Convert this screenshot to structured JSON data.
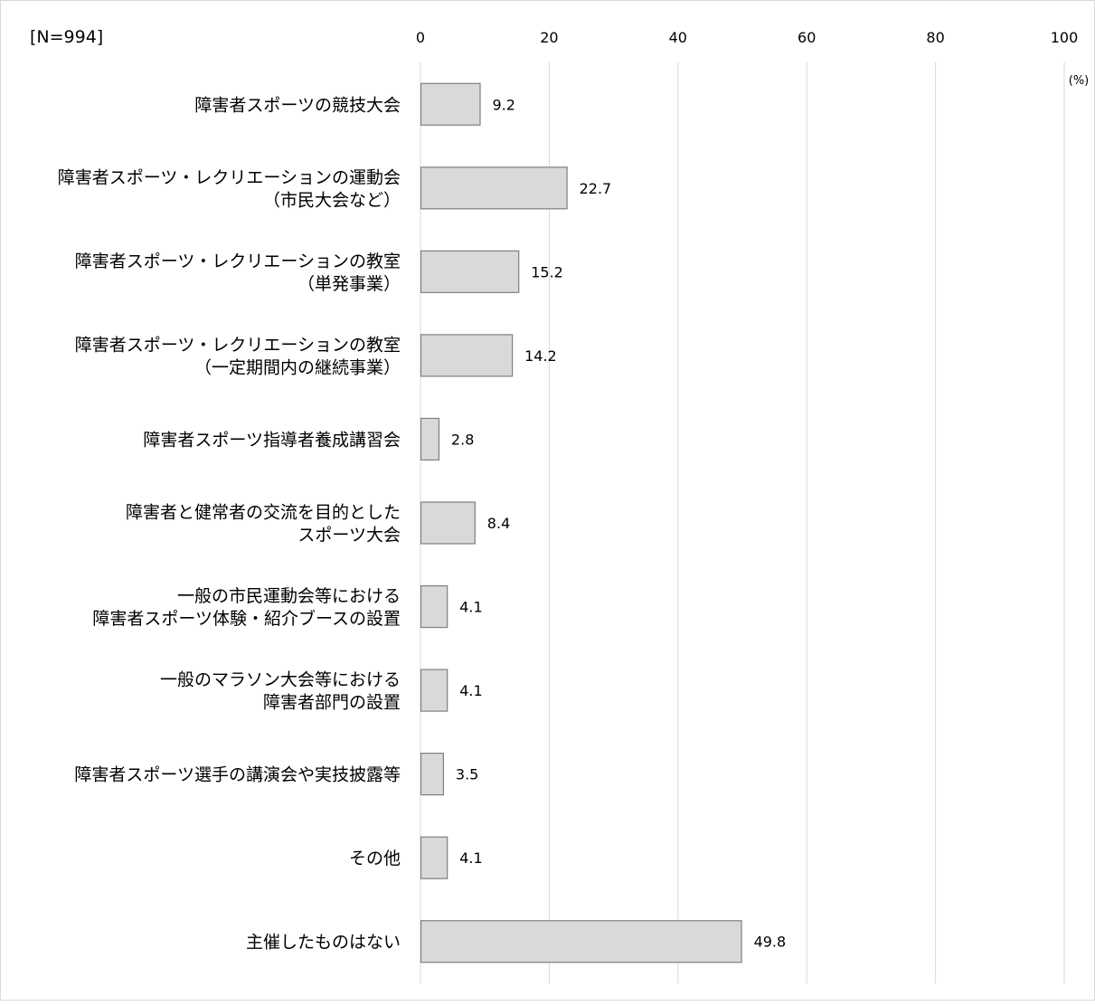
{
  "chart_data": {
    "type": "bar",
    "orientation": "horizontal",
    "sample_label": "[N=994]",
    "unit_label": "(%)",
    "xlim": [
      0,
      100
    ],
    "x_ticks": [
      "0",
      "20",
      "40",
      "60",
      "80",
      "100"
    ],
    "grid": true,
    "bar_color": "#d9d9d9",
    "bar_border_color": "#7f7f7f",
    "grid_color": "#d9d9d9",
    "categories": [
      [
        "障害者スポーツの競技大会"
      ],
      [
        "障害者スポーツ・レクリエーションの運動会",
        "（市民大会など）"
      ],
      [
        "障害者スポーツ・レクリエーションの教室",
        "（単発事業）"
      ],
      [
        "障害者スポーツ・レクリエーションの教室",
        "（一定期間内の継続事業）"
      ],
      [
        "障害者スポーツ指導者養成講習会"
      ],
      [
        "障害者と健常者の交流を目的とした",
        "スポーツ大会"
      ],
      [
        "一般の市民運動会等における",
        "障害者スポーツ体験・紹介ブースの設置"
      ],
      [
        "一般のマラソン大会等における",
        "障害者部門の設置"
      ],
      [
        "障害者スポーツ選手の講演会や実技披露等"
      ],
      [
        "その他"
      ],
      [
        "主催したものはない"
      ]
    ],
    "values": [
      9.2,
      22.7,
      15.2,
      14.2,
      2.8,
      8.4,
      4.1,
      4.1,
      3.5,
      4.1,
      49.8
    ],
    "value_labels": [
      "9.2",
      "22.7",
      "15.2",
      "14.2",
      "2.8",
      "8.4",
      "4.1",
      "4.1",
      "3.5",
      "4.1",
      "49.8"
    ]
  }
}
